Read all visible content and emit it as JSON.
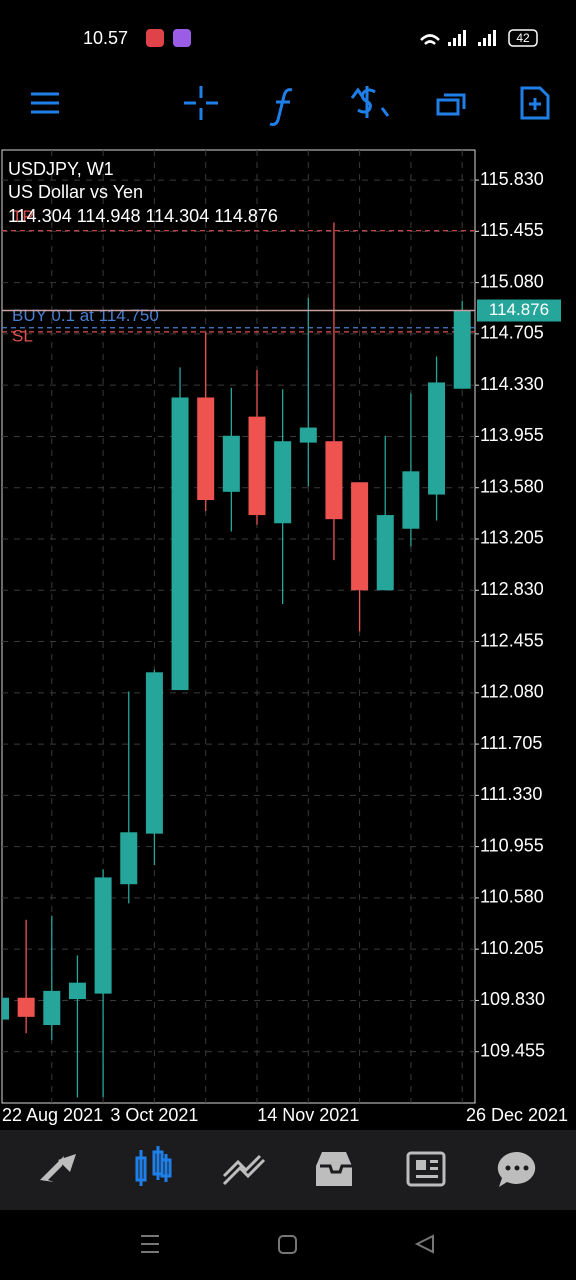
{
  "status_bar": {
    "time": "10.57",
    "battery": "42"
  },
  "chart_data": {
    "type": "candlestick",
    "title": "USDJPY, W1",
    "subtitle": "US Dollar vs Yen",
    "categories": [
      "22 Aug 2021",
      null,
      null,
      null,
      null,
      null,
      "3 Oct 2021",
      null,
      null,
      null,
      null,
      null,
      "14 Nov 2021",
      null,
      null,
      null,
      null,
      null,
      "26 Dec 2021"
    ],
    "open": [
      109.69,
      109.85,
      109.65,
      109.84,
      109.88,
      110.68,
      111.05,
      112.1,
      114.24,
      113.55,
      114.1,
      113.32,
      113.91,
      113.92,
      113.62,
      112.83,
      113.28,
      113.53,
      114.304
    ],
    "high": [
      109.86,
      110.42,
      110.45,
      110.16,
      110.79,
      112.09,
      112.25,
      114.46,
      114.72,
      114.31,
      114.44,
      114.3,
      114.97,
      115.52,
      113.62,
      113.96,
      114.27,
      114.54,
      114.948
    ],
    "low": [
      109.68,
      109.59,
      109.54,
      109.12,
      109.12,
      110.54,
      110.82,
      112.1,
      113.41,
      113.26,
      113.31,
      112.73,
      113.59,
      113.05,
      112.53,
      112.83,
      113.15,
      113.34,
      114.304
    ],
    "close": [
      109.85,
      109.71,
      109.9,
      109.96,
      110.73,
      111.06,
      112.23,
      114.24,
      113.49,
      113.96,
      113.38,
      113.92,
      114.02,
      113.35,
      112.83,
      113.38,
      113.7,
      114.35,
      114.876
    ],
    "up_color": "#26a69a",
    "down_color": "#ef5350",
    "ylim": [
      109.08,
      116.05
    ],
    "yticks": [
      {
        "value": 115.83,
        "label": "115.830"
      },
      115.455,
      {
        "value": 115.08,
        "label": "115.080"
      },
      114.705,
      {
        "value": 114.33,
        "label": "114.330"
      },
      113.955,
      {
        "value": 113.58,
        "label": "113.580"
      },
      113.205,
      {
        "value": 112.83,
        "label": "112.830"
      },
      112.455,
      {
        "value": 112.08,
        "label": "112.080"
      },
      111.705,
      {
        "value": 111.33,
        "label": "111.330"
      },
      110.955,
      {
        "value": 110.58,
        "label": "110.580"
      },
      110.205,
      {
        "value": 109.83,
        "label": "109.830"
      },
      109.455
    ],
    "grid": true,
    "last_price": 114.876,
    "levels": [
      {
        "label": "TP",
        "value": 115.46,
        "color": "#e05050"
      },
      {
        "label": "BUY 0.1 at 114.750",
        "value": 114.75,
        "color": "#4a7fd0"
      },
      {
        "label": "SL",
        "value": 114.72,
        "color": "#e05050"
      }
    ]
  }
}
